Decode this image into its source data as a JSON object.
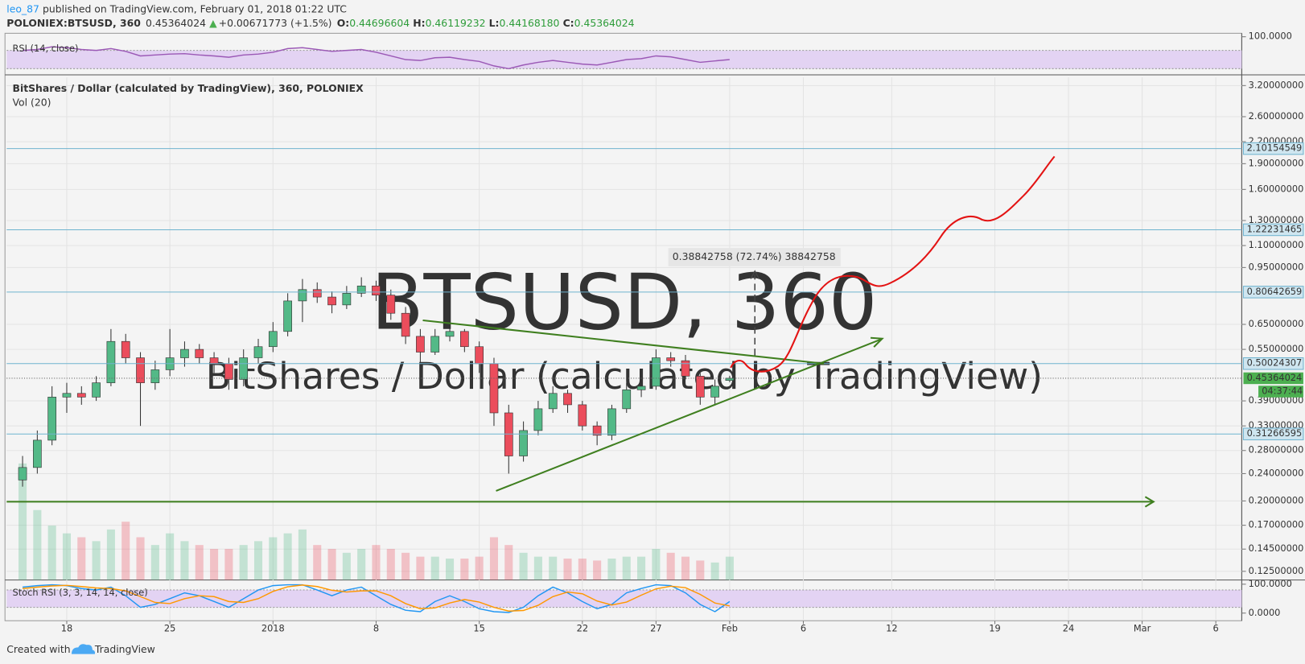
{
  "header": {
    "user": "leo_87",
    "published": "published on TradingView.com, February 01, 2018 01:22 UTC",
    "symbol": "POLONIEX:BTSUSD, 360",
    "price": "0.45364024",
    "arrow": "▲",
    "change": "+0.00671773 (+1.5%)",
    "ohlc": [
      {
        "label": "O:",
        "value": "0.44696604"
      },
      {
        "label": "H:",
        "value": "0.46119232"
      },
      {
        "label": "L:",
        "value": "0.44168180"
      },
      {
        "label": "C:",
        "value": "0.45364024"
      }
    ]
  },
  "footer": {
    "created": "Created with",
    "brand": "TradingView"
  },
  "chart_data": [
    {
      "type": "line",
      "title": "RSI (14, close)",
      "color": "#9b59b6",
      "values": [
        70,
        72,
        78,
        76,
        72,
        70,
        74,
        68,
        58,
        60,
        62,
        63,
        60,
        58,
        55,
        60,
        62,
        66,
        74,
        76,
        72,
        68,
        70,
        72,
        66,
        58,
        50,
        48,
        54,
        55,
        50,
        46,
        36,
        30,
        38,
        44,
        48,
        44,
        40,
        38,
        44,
        50,
        52,
        58,
        56,
        50,
        44,
        47,
        50
      ],
      "ylim": [
        20,
        104
      ],
      "yticks": [
        {
          "value": 100,
          "label": "100.0000"
        }
      ],
      "band": [
        30,
        70
      ],
      "band_color": "#e3d3f3"
    },
    {
      "type": "candlestick",
      "title": "BitShares / Dollar (calculated by TradingView), 360, POLONIEX",
      "subtitle": "Vol (20)",
      "watermark": "BTSUSD, 360",
      "watermark_subtitle": "BitShares / Dollar (calculated by TradingView)",
      "x": [
        -17,
        -16,
        -15,
        -14,
        -13,
        -12,
        -11,
        -10,
        -9,
        -8,
        -7,
        -6,
        -5,
        -4,
        -3,
        -2,
        -1,
        0,
        1,
        2,
        3,
        4,
        5,
        6,
        7,
        8,
        9,
        10,
        11,
        12,
        13,
        14,
        15,
        16,
        17,
        18,
        19,
        20,
        21,
        22,
        23,
        24,
        25,
        26,
        27,
        28,
        29,
        30,
        31
      ],
      "xlim": [
        -18.08,
        65.76
      ],
      "xticks": [
        {
          "value": -14,
          "label": "18"
        },
        {
          "value": -7,
          "label": "25"
        },
        {
          "value": 0,
          "label": "2018"
        },
        {
          "value": 7,
          "label": "8"
        },
        {
          "value": 14,
          "label": "15"
        },
        {
          "value": 21,
          "label": "22"
        },
        {
          "value": 26,
          "label": "27"
        },
        {
          "value": 31,
          "label": "Feb"
        },
        {
          "value": 36,
          "label": "6"
        },
        {
          "value": 42,
          "label": "12"
        },
        {
          "value": 49,
          "label": "19"
        },
        {
          "value": 54,
          "label": "24"
        },
        {
          "value": 59,
          "label": "Mar"
        },
        {
          "value": 64,
          "label": "6"
        }
      ],
      "open": [
        0.23,
        0.25,
        0.3,
        0.4,
        0.41,
        0.4,
        0.44,
        0.58,
        0.52,
        0.44,
        0.48,
        0.52,
        0.55,
        0.52,
        0.5,
        0.45,
        0.52,
        0.56,
        0.62,
        0.76,
        0.82,
        0.78,
        0.74,
        0.8,
        0.84,
        0.79,
        0.7,
        0.6,
        0.54,
        0.6,
        0.62,
        0.56,
        0.5,
        0.36,
        0.27,
        0.32,
        0.37,
        0.41,
        0.38,
        0.33,
        0.31,
        0.37,
        0.42,
        0.43,
        0.52,
        0.51,
        0.46,
        0.4,
        0.44696604
      ],
      "high": [
        0.27,
        0.32,
        0.43,
        0.44,
        0.43,
        0.46,
        0.63,
        0.61,
        0.54,
        0.51,
        0.63,
        0.58,
        0.57,
        0.54,
        0.52,
        0.55,
        0.59,
        0.66,
        0.8,
        0.88,
        0.86,
        0.81,
        0.84,
        0.89,
        0.87,
        0.82,
        0.73,
        0.63,
        0.63,
        0.64,
        0.63,
        0.58,
        0.52,
        0.38,
        0.34,
        0.39,
        0.43,
        0.42,
        0.39,
        0.34,
        0.38,
        0.44,
        0.45,
        0.55,
        0.54,
        0.53,
        0.47,
        0.45,
        0.46119232
      ],
      "low": [
        0.22,
        0.24,
        0.29,
        0.36,
        0.38,
        0.39,
        0.43,
        0.5,
        0.33,
        0.42,
        0.46,
        0.49,
        0.5,
        0.47,
        0.42,
        0.43,
        0.5,
        0.54,
        0.6,
        0.66,
        0.75,
        0.7,
        0.72,
        0.78,
        0.76,
        0.67,
        0.57,
        0.5,
        0.53,
        0.58,
        0.54,
        0.47,
        0.33,
        0.24,
        0.26,
        0.31,
        0.36,
        0.36,
        0.32,
        0.29,
        0.3,
        0.36,
        0.4,
        0.42,
        0.49,
        0.45,
        0.38,
        0.38,
        0.4416818
      ],
      "close": [
        0.25,
        0.3,
        0.4,
        0.41,
        0.4,
        0.44,
        0.58,
        0.52,
        0.44,
        0.48,
        0.52,
        0.55,
        0.52,
        0.5,
        0.45,
        0.52,
        0.56,
        0.62,
        0.76,
        0.82,
        0.78,
        0.74,
        0.8,
        0.84,
        0.79,
        0.7,
        0.6,
        0.54,
        0.6,
        0.62,
        0.56,
        0.5,
        0.36,
        0.27,
        0.32,
        0.37,
        0.41,
        0.38,
        0.33,
        0.31,
        0.37,
        0.42,
        0.43,
        0.52,
        0.51,
        0.46,
        0.4,
        0.43,
        0.45364024
      ],
      "volume": [
        300,
        180,
        140,
        120,
        110,
        100,
        130,
        150,
        110,
        90,
        120,
        100,
        90,
        80,
        80,
        90,
        100,
        110,
        120,
        130,
        90,
        80,
        70,
        80,
        90,
        80,
        70,
        60,
        60,
        55,
        55,
        60,
        110,
        90,
        70,
        60,
        60,
        55,
        55,
        50,
        55,
        60,
        60,
        80,
        70,
        60,
        50,
        45,
        60
      ],
      "up_color": "#53b987",
      "down_color": "#eb4d5c",
      "log_scale": true,
      "ylim": [
        0.118,
        3.38
      ],
      "grid": true,
      "yticks": [
        {
          "value": 3.2,
          "label": "3.20000000"
        },
        {
          "value": 2.6,
          "label": "2.60000000"
        },
        {
          "value": 2.2,
          "label": "2.20000000"
        },
        {
          "value": 1.9,
          "label": "1.90000000"
        },
        {
          "value": 1.6,
          "label": "1.60000000"
        },
        {
          "value": 1.3,
          "label": "1.30000000"
        },
        {
          "value": 1.1,
          "label": "1.10000000"
        },
        {
          "value": 0.95,
          "label": "0.95000000"
        },
        {
          "value": 0.65,
          "label": "0.65000000"
        },
        {
          "value": 0.55,
          "label": "0.55000000"
        },
        {
          "value": 0.39,
          "label": "0.39000000"
        },
        {
          "value": 0.33,
          "label": "0.33000000"
        },
        {
          "value": 0.28,
          "label": "0.28000000"
        },
        {
          "value": 0.24,
          "label": "0.24000000"
        },
        {
          "value": 0.2,
          "label": "0.20000000"
        },
        {
          "value": 0.17,
          "label": "0.17000000"
        },
        {
          "value": 0.145,
          "label": "0.14500000"
        },
        {
          "value": 0.125,
          "label": "0.12500000"
        }
      ],
      "levels": [
        2.10154549,
        1.22231465,
        0.80642659,
        0.50024307,
        0.31266595
      ],
      "level_color": "#6fb3cf",
      "last_price": 0.45364024,
      "last_color": "#4caf50",
      "countdown": "04:37:44",
      "annotation": "0.38842758 (72.74%) 38842758"
    },
    {
      "type": "line",
      "title": "Stoch RSI (3, 3, 14, 14, close)",
      "series": [
        {
          "color": "#2196f3",
          "values": [
            90,
            95,
            98,
            95,
            85,
            80,
            90,
            60,
            20,
            30,
            50,
            70,
            60,
            40,
            20,
            50,
            80,
            95,
            98,
            98,
            80,
            60,
            80,
            90,
            60,
            30,
            10,
            5,
            40,
            60,
            40,
            15,
            5,
            2,
            20,
            60,
            90,
            70,
            40,
            15,
            30,
            70,
            85,
            98,
            95,
            70,
            30,
            5,
            40
          ]
        },
        {
          "color": "#ff9800",
          "values": [
            85,
            90,
            94,
            96,
            92,
            87,
            85,
            77,
            57,
            37,
            33,
            50,
            60,
            57,
            40,
            37,
            50,
            75,
            91,
            97,
            92,
            79,
            73,
            77,
            77,
            60,
            33,
            15,
            18,
            35,
            47,
            38,
            20,
            7,
            9,
            27,
            57,
            73,
            67,
            42,
            28,
            38,
            62,
            84,
            93,
            88,
            65,
            35,
            25
          ]
        }
      ],
      "ylim": [
        -23.5,
        114.7
      ],
      "yticks": [
        {
          "value": 100,
          "label": "100.0000"
        },
        {
          "value": 0,
          "label": "0.0000"
        }
      ],
      "band": [
        20,
        80
      ],
      "band_color": "#e3d3f3"
    }
  ]
}
